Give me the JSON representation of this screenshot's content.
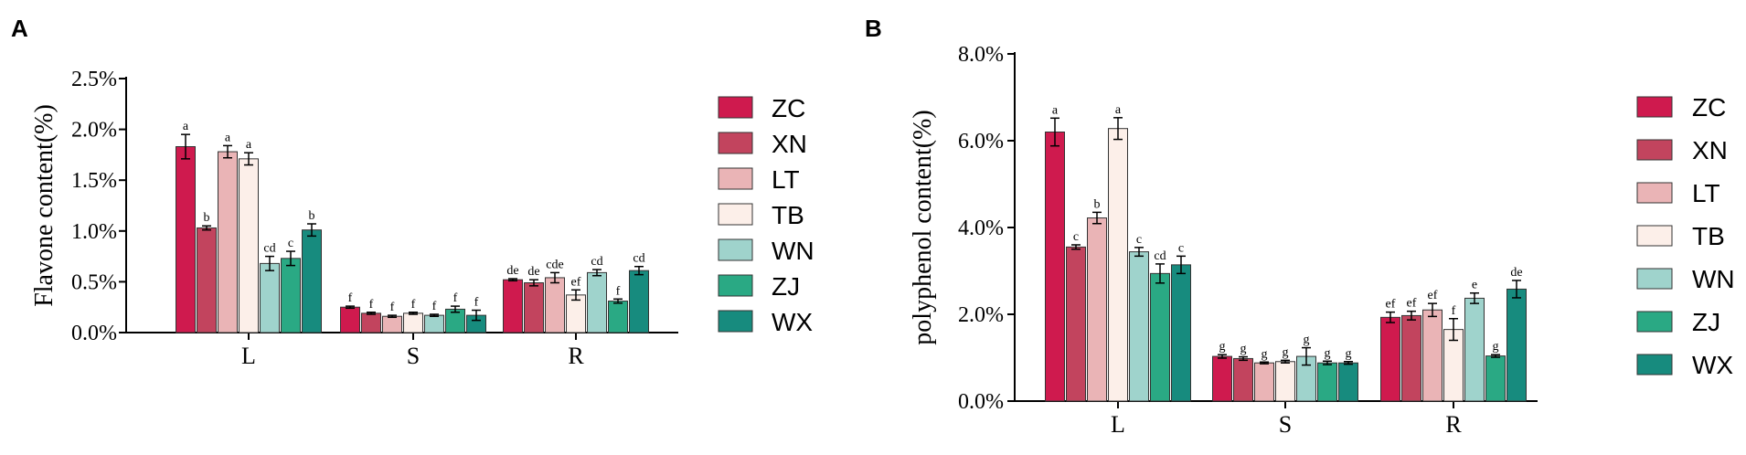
{
  "colors": {
    "ZC": "#cf1a4e",
    "XN": "#c2445e",
    "LT": "#eab4b6",
    "TB": "#fcefe9",
    "WN": "#9fd3cc",
    "ZJ": "#2aa984",
    "WX": "#178b7e",
    "axis": "#000000"
  },
  "chart_data": [
    {
      "panel": "A",
      "type": "bar",
      "ylabel": "Flavone content(%)",
      "xlabel": "",
      "ylim": [
        0,
        2.5
      ],
      "yticks": [
        0,
        0.5,
        1.0,
        1.5,
        2.0,
        2.5
      ],
      "ytick_labels": [
        "0.0%",
        "0.5%",
        "1.0%",
        "1.5%",
        "2.0%",
        "2.5%"
      ],
      "categories": [
        "L",
        "S",
        "R"
      ],
      "legend_position": "right",
      "series": [
        {
          "name": "ZC",
          "values": [
            1.83,
            0.25,
            0.52
          ],
          "errors": [
            0.12,
            0.01,
            0.01
          ],
          "letters": [
            "a",
            "f",
            "de"
          ]
        },
        {
          "name": "XN",
          "values": [
            1.03,
            0.19,
            0.49
          ],
          "errors": [
            0.02,
            0.01,
            0.03
          ],
          "letters": [
            "b",
            "f",
            "de"
          ]
        },
        {
          "name": "LT",
          "values": [
            1.78,
            0.16,
            0.54
          ],
          "errors": [
            0.06,
            0.01,
            0.05
          ],
          "letters": [
            "a",
            "f",
            "cde"
          ]
        },
        {
          "name": "TB",
          "values": [
            1.71,
            0.19,
            0.37
          ],
          "errors": [
            0.06,
            0.01,
            0.05
          ],
          "letters": [
            "a",
            "f",
            "ef"
          ]
        },
        {
          "name": "WN",
          "values": [
            0.68,
            0.17,
            0.59
          ],
          "errors": [
            0.07,
            0.01,
            0.03
          ],
          "letters": [
            "cd",
            "f",
            "cd"
          ]
        },
        {
          "name": "ZJ",
          "values": [
            0.73,
            0.23,
            0.31
          ],
          "errors": [
            0.07,
            0.03,
            0.02
          ],
          "letters": [
            "c",
            "f",
            "f"
          ]
        },
        {
          "name": "WX",
          "values": [
            1.01,
            0.17,
            0.61
          ],
          "errors": [
            0.06,
            0.05,
            0.04
          ],
          "letters": [
            "b",
            "f",
            "cd"
          ]
        }
      ]
    },
    {
      "panel": "B",
      "type": "bar",
      "ylabel": "polyphenol content(%)",
      "xlabel": "",
      "ylim": [
        0,
        8.0
      ],
      "yticks": [
        0,
        2.0,
        4.0,
        6.0,
        8.0
      ],
      "ytick_labels": [
        "0.0%",
        "2.0%",
        "4.0%",
        "6.0%",
        "8.0%"
      ],
      "categories": [
        "L",
        "S",
        "R"
      ],
      "legend_position": "right",
      "series": [
        {
          "name": "ZC",
          "values": [
            6.2,
            1.03,
            1.93
          ],
          "errors": [
            0.32,
            0.04,
            0.12
          ],
          "letters": [
            "a",
            "g",
            "ef"
          ]
        },
        {
          "name": "XN",
          "values": [
            3.55,
            0.98,
            1.97
          ],
          "errors": [
            0.05,
            0.04,
            0.1
          ],
          "letters": [
            "c",
            "g",
            "ef"
          ]
        },
        {
          "name": "LT",
          "values": [
            4.22,
            0.88,
            2.1
          ],
          "errors": [
            0.13,
            0.02,
            0.15
          ],
          "letters": [
            "b",
            "g",
            "ef"
          ]
        },
        {
          "name": "TB",
          "values": [
            6.28,
            0.91,
            1.65
          ],
          "errors": [
            0.25,
            0.03,
            0.25
          ],
          "letters": [
            "a",
            "g",
            "f"
          ]
        },
        {
          "name": "WN",
          "values": [
            3.44,
            1.03,
            2.37
          ],
          "errors": [
            0.1,
            0.2,
            0.12
          ],
          "letters": [
            "c",
            "g",
            "e"
          ]
        },
        {
          "name": "ZJ",
          "values": [
            2.94,
            0.88,
            1.04
          ],
          "errors": [
            0.22,
            0.04,
            0.03
          ],
          "letters": [
            "cd",
            "g",
            "g"
          ]
        },
        {
          "name": "WX",
          "values": [
            3.14,
            0.88,
            2.58
          ],
          "errors": [
            0.2,
            0.03,
            0.2
          ],
          "letters": [
            "c",
            "g",
            "de"
          ]
        }
      ]
    }
  ]
}
